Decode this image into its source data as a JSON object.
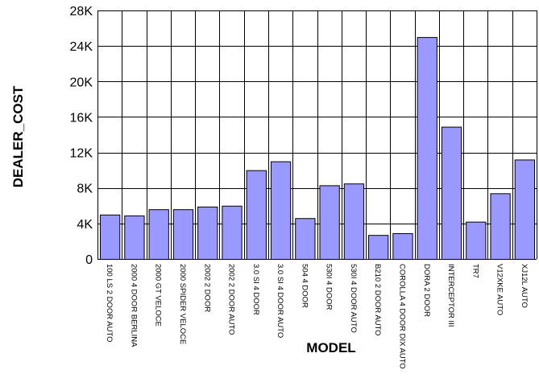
{
  "chart_data": {
    "type": "bar",
    "xlabel": "MODEL",
    "ylabel": "DEALER_COST",
    "ylim": [
      0,
      28000
    ],
    "yticks": [
      0,
      4000,
      8000,
      12000,
      16000,
      20000,
      24000,
      28000
    ],
    "ytick_labels": [
      "0",
      "4K",
      "8K",
      "12K",
      "16K",
      "20K",
      "24K",
      "28K"
    ],
    "grid": true,
    "bar_color": "#9999ff",
    "categories": [
      "100 LS 2 DOOR AUTO",
      "2000 4 DOOR BERLINA",
      "2000 GT VELOCE",
      "2000 SPIDER VELOCE",
      "2002 2 DOOR",
      "2002 2 DOOR AUTO",
      "3.0 SI 4 DOOR",
      "3.0 SI 4 DOOR AUTO",
      "504 4 DOOR",
      "530I 4 DOOR",
      "530I 4 DOOR AUTO",
      "B210 2 DOOR AUTO",
      "COROLLA 4 DOOR DIX AUTO",
      "DORA 2 DOOR",
      "INTERCEPTOR III",
      "TR7",
      "V12XKE AUTO",
      "XJ12L AUTO"
    ],
    "values": [
      5000,
      4900,
      5600,
      5600,
      5900,
      6000,
      10000,
      11000,
      4600,
      8300,
      8500,
      2700,
      2900,
      25000,
      14900,
      4200,
      7400,
      11200
    ]
  }
}
